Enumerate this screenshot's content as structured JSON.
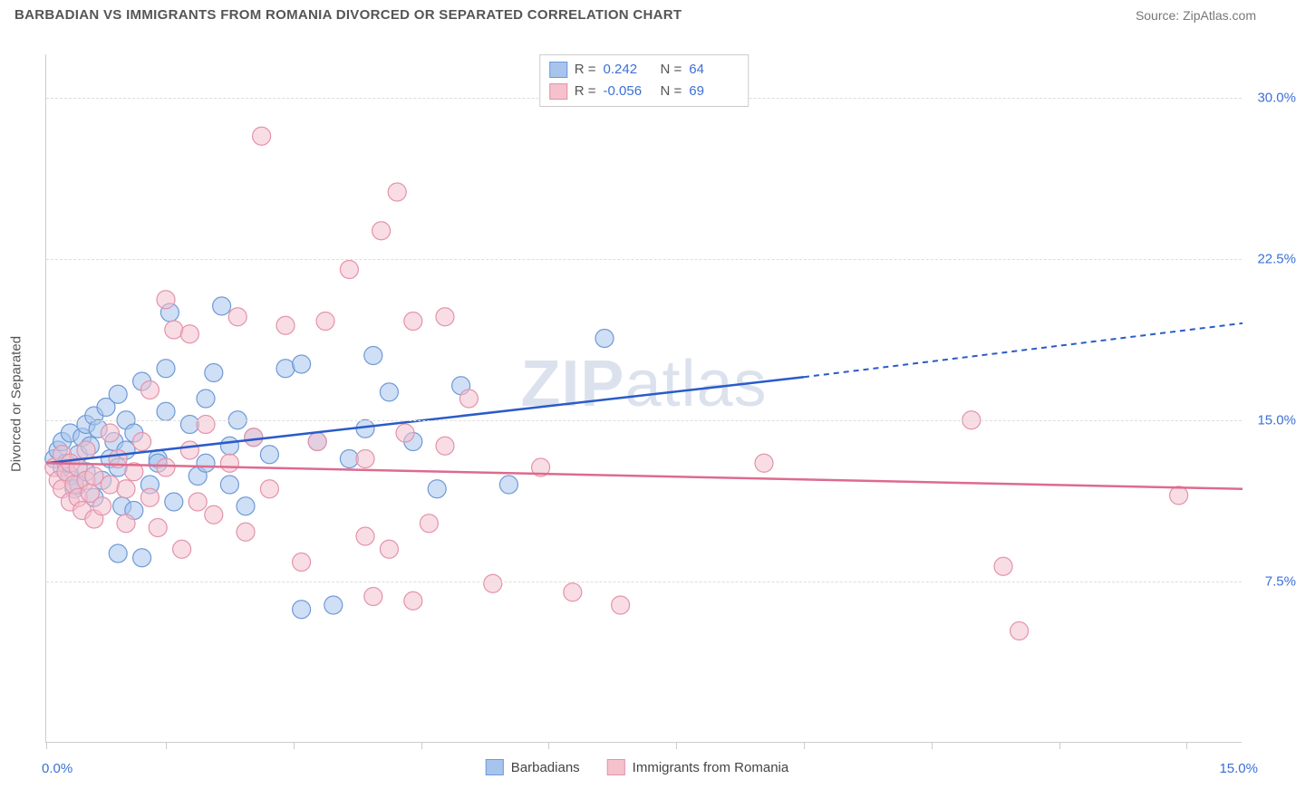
{
  "title": "BARBADIAN VS IMMIGRANTS FROM ROMANIA DIVORCED OR SEPARATED CORRELATION CHART",
  "source": "Source: ZipAtlas.com",
  "watermark_bold": "ZIP",
  "watermark_rest": "atlas",
  "ylabel": "Divorced or Separated",
  "chart": {
    "type": "scatter-with-regression",
    "xlim": [
      0,
      15
    ],
    "ylim": [
      0,
      32
    ],
    "xtick_positions": [
      0,
      1.5,
      3.1,
      4.7,
      6.3,
      7.9,
      9.5,
      11.1,
      12.7,
      14.3
    ],
    "xtick_labels_left": "0.0%",
    "xtick_labels_right": "15.0%",
    "ytick_positions": [
      7.5,
      15.0,
      22.5,
      30.0
    ],
    "ytick_labels": [
      "7.5%",
      "15.0%",
      "22.5%",
      "30.0%"
    ],
    "background_color": "#ffffff",
    "grid_color": "#dddddd",
    "axis_color": "#cccccc",
    "axis_label_color": "#3b6fd6",
    "marker_radius": 10,
    "marker_opacity": 0.55,
    "series": [
      {
        "name": "Barbadians",
        "color_fill": "#a7c4ec",
        "color_stroke": "#6f9ad6",
        "line_color": "#2a5bc9",
        "R": "0.242",
        "N": "64",
        "regression": {
          "x1": 0,
          "y1": 13.0,
          "x2": 9.5,
          "y2": 17.0,
          "x2_dash": 15.0,
          "y2_dash": 19.5
        },
        "points": [
          [
            0.1,
            13.2
          ],
          [
            0.15,
            13.6
          ],
          [
            0.2,
            12.8
          ],
          [
            0.2,
            14.0
          ],
          [
            0.25,
            13.0
          ],
          [
            0.3,
            12.4
          ],
          [
            0.3,
            14.4
          ],
          [
            0.35,
            11.8
          ],
          [
            0.4,
            12.0
          ],
          [
            0.4,
            13.4
          ],
          [
            0.45,
            14.2
          ],
          [
            0.5,
            12.6
          ],
          [
            0.5,
            14.8
          ],
          [
            0.55,
            13.8
          ],
          [
            0.6,
            15.2
          ],
          [
            0.6,
            11.4
          ],
          [
            0.65,
            14.6
          ],
          [
            0.7,
            12.2
          ],
          [
            0.75,
            15.6
          ],
          [
            0.8,
            13.2
          ],
          [
            0.85,
            14.0
          ],
          [
            0.9,
            12.8
          ],
          [
            0.9,
            16.2
          ],
          [
            0.95,
            11.0
          ],
          [
            1.0,
            15.0
          ],
          [
            1.0,
            13.6
          ],
          [
            1.1,
            10.8
          ],
          [
            1.1,
            14.4
          ],
          [
            1.2,
            16.8
          ],
          [
            1.3,
            12.0
          ],
          [
            1.4,
            13.2
          ],
          [
            1.5,
            15.4
          ],
          [
            1.5,
            17.4
          ],
          [
            1.55,
            20.0
          ],
          [
            1.6,
            11.2
          ],
          [
            1.8,
            14.8
          ],
          [
            1.9,
            12.4
          ],
          [
            2.0,
            16.0
          ],
          [
            2.0,
            13.0
          ],
          [
            2.1,
            17.2
          ],
          [
            2.2,
            20.3
          ],
          [
            2.3,
            13.8
          ],
          [
            2.3,
            12.0
          ],
          [
            2.4,
            15.0
          ],
          [
            2.5,
            11.0
          ],
          [
            2.6,
            14.2
          ],
          [
            2.8,
            13.4
          ],
          [
            3.0,
            17.4
          ],
          [
            3.2,
            6.2
          ],
          [
            3.2,
            17.6
          ],
          [
            3.4,
            14.0
          ],
          [
            3.6,
            6.4
          ],
          [
            3.8,
            13.2
          ],
          [
            4.0,
            14.6
          ],
          [
            4.1,
            18.0
          ],
          [
            4.3,
            16.3
          ],
          [
            4.6,
            14.0
          ],
          [
            4.9,
            11.8
          ],
          [
            5.2,
            16.6
          ],
          [
            5.8,
            12.0
          ],
          [
            7.0,
            18.8
          ],
          [
            0.9,
            8.8
          ],
          [
            1.2,
            8.6
          ],
          [
            1.4,
            13.0
          ]
        ]
      },
      {
        "name": "Immigrants from Romania",
        "color_fill": "#f4c1cd",
        "color_stroke": "#e393ab",
        "line_color": "#dd6b8e",
        "R": "-0.056",
        "N": "69",
        "regression": {
          "x1": 0,
          "y1": 13.0,
          "x2": 15.0,
          "y2": 11.8
        },
        "points": [
          [
            0.1,
            12.8
          ],
          [
            0.15,
            12.2
          ],
          [
            0.2,
            13.4
          ],
          [
            0.2,
            11.8
          ],
          [
            0.25,
            12.6
          ],
          [
            0.3,
            11.2
          ],
          [
            0.3,
            13.0
          ],
          [
            0.35,
            12.0
          ],
          [
            0.4,
            11.4
          ],
          [
            0.4,
            12.8
          ],
          [
            0.45,
            10.8
          ],
          [
            0.5,
            12.2
          ],
          [
            0.5,
            13.6
          ],
          [
            0.55,
            11.6
          ],
          [
            0.6,
            10.4
          ],
          [
            0.6,
            12.4
          ],
          [
            0.7,
            11.0
          ],
          [
            0.8,
            12.0
          ],
          [
            0.8,
            14.4
          ],
          [
            0.9,
            13.2
          ],
          [
            1.0,
            11.8
          ],
          [
            1.0,
            10.2
          ],
          [
            1.1,
            12.6
          ],
          [
            1.2,
            14.0
          ],
          [
            1.3,
            11.4
          ],
          [
            1.3,
            16.4
          ],
          [
            1.4,
            10.0
          ],
          [
            1.5,
            12.8
          ],
          [
            1.5,
            20.6
          ],
          [
            1.6,
            19.2
          ],
          [
            1.7,
            9.0
          ],
          [
            1.8,
            13.6
          ],
          [
            1.8,
            19.0
          ],
          [
            1.9,
            11.2
          ],
          [
            2.0,
            14.8
          ],
          [
            2.1,
            10.6
          ],
          [
            2.3,
            13.0
          ],
          [
            2.4,
            19.8
          ],
          [
            2.5,
            9.8
          ],
          [
            2.6,
            14.2
          ],
          [
            2.7,
            28.2
          ],
          [
            2.8,
            11.8
          ],
          [
            3.0,
            19.4
          ],
          [
            3.2,
            8.4
          ],
          [
            3.4,
            14.0
          ],
          [
            3.5,
            19.6
          ],
          [
            3.8,
            22.0
          ],
          [
            4.0,
            9.6
          ],
          [
            4.0,
            13.2
          ],
          [
            4.1,
            6.8
          ],
          [
            4.2,
            23.8
          ],
          [
            4.3,
            9.0
          ],
          [
            4.4,
            25.6
          ],
          [
            4.5,
            14.4
          ],
          [
            4.6,
            6.6
          ],
          [
            4.6,
            19.6
          ],
          [
            4.8,
            10.2
          ],
          [
            5.0,
            13.8
          ],
          [
            5.0,
            19.8
          ],
          [
            5.3,
            16.0
          ],
          [
            5.6,
            7.4
          ],
          [
            6.2,
            12.8
          ],
          [
            6.6,
            7.0
          ],
          [
            7.2,
            6.4
          ],
          [
            9.0,
            13.0
          ],
          [
            11.6,
            15.0
          ],
          [
            12.0,
            8.2
          ],
          [
            12.2,
            5.2
          ],
          [
            14.2,
            11.5
          ]
        ]
      }
    ]
  },
  "legend_bottom": {
    "series1": "Barbadians",
    "series2": "Immigrants from Romania"
  }
}
